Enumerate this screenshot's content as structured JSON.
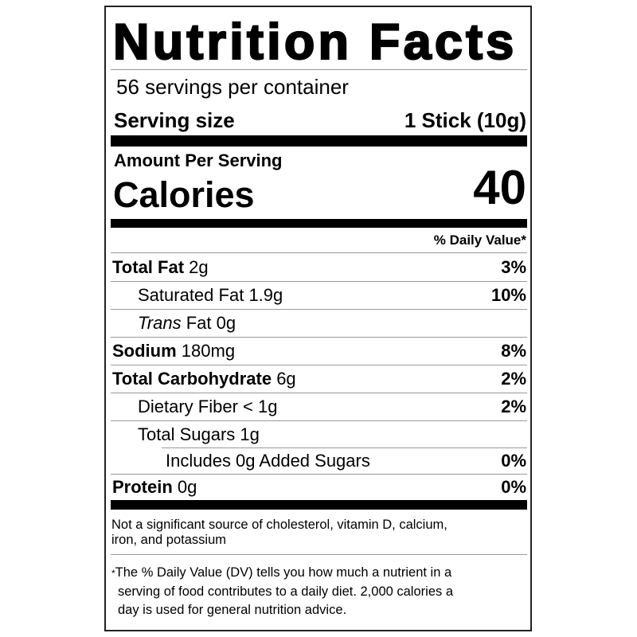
{
  "title": "Nutrition Facts",
  "servings_per_container": "56 servings per container",
  "serving_size": {
    "label": "Serving size",
    "value": "1 Stick (10g)"
  },
  "amount_per_serving": "Amount Per Serving",
  "calories": {
    "label": "Calories",
    "value": "40"
  },
  "dv_header": "% Daily Value*",
  "nutrients": [
    {
      "name": "Total Fat",
      "amount": "2g",
      "dv": "3%"
    },
    {
      "name": "Saturated Fat",
      "amount": "1.9g",
      "dv": "10%"
    },
    {
      "name_italic": "Trans",
      "name": "Fat",
      "amount": "0g",
      "dv": ""
    },
    {
      "name": "Sodium",
      "amount": "180mg",
      "dv": "8%"
    },
    {
      "name": "Total Carbohydrate",
      "amount": "6g",
      "dv": "2%"
    },
    {
      "name": "Dietary Fiber",
      "amount": "< 1g",
      "dv": "2%"
    },
    {
      "name": "Total Sugars",
      "amount": "1g",
      "dv": ""
    },
    {
      "name": "Includes 0g Added Sugars",
      "amount": "",
      "dv": "0%"
    },
    {
      "name": "Protein",
      "amount": "0g",
      "dv": "0%"
    }
  ],
  "not_significant": [
    "Not a significant source of cholesterol, vitamin D, calcium,",
    "iron, and potassium"
  ],
  "footnote": {
    "asterisk": "*",
    "lines": [
      "The % Daily Value (DV) tells you how much a nutrient in a",
      "serving of food contributes to a daily diet. 2,000 calories a",
      "day is used for general nutrition advice."
    ]
  }
}
